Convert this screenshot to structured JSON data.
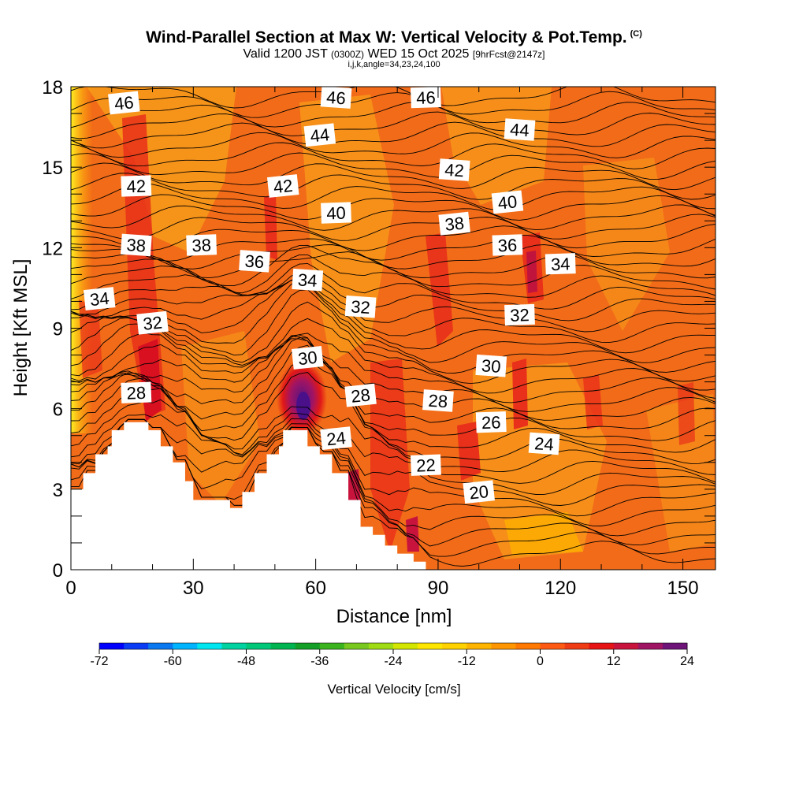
{
  "title": {
    "main": "Wind-Parallel Section at Max W: Vertical Velocity & Pot.Temp.",
    "copyright": "(C)",
    "valid_prefix": "Valid 1200 JST",
    "utc": "(0300Z)",
    "valid_date": "WED 15 Oct 2025",
    "forecast": "[9hrFcst@2147z]",
    "indices": "i,j,k,angle=34,23,24,100"
  },
  "colors": {
    "background_fill": "#f26b18",
    "terrain": "#ffffff",
    "contour": "#000000"
  },
  "chart_data": {
    "type": "contour",
    "xlabel": "Distance [nm]",
    "ylabel": "Height [Kft MSL]",
    "xlim": [
      0,
      158
    ],
    "ylim": [
      0,
      18
    ],
    "x_ticks": [
      0,
      30,
      60,
      90,
      120,
      150
    ],
    "y_ticks": [
      0,
      3,
      6,
      9,
      12,
      15,
      18
    ],
    "terrain_profile": [
      [
        0,
        3.0
      ],
      [
        3,
        3.0
      ],
      [
        3,
        3.6
      ],
      [
        6,
        3.6
      ],
      [
        6,
        4.3
      ],
      [
        9,
        4.3
      ],
      [
        9,
        4.6
      ],
      [
        10,
        4.6
      ],
      [
        10,
        5.2
      ],
      [
        13,
        5.2
      ],
      [
        13,
        5.5
      ],
      [
        19,
        5.5
      ],
      [
        19,
        5.2
      ],
      [
        22,
        5.2
      ],
      [
        22,
        4.6
      ],
      [
        25,
        4.6
      ],
      [
        25,
        4.0
      ],
      [
        28,
        4.0
      ],
      [
        28,
        3.3
      ],
      [
        30,
        3.3
      ],
      [
        30,
        2.6
      ],
      [
        39,
        2.6
      ],
      [
        39,
        2.3
      ],
      [
        42,
        2.3
      ],
      [
        42,
        2.9
      ],
      [
        45,
        2.9
      ],
      [
        45,
        3.6
      ],
      [
        48,
        3.6
      ],
      [
        48,
        4.3
      ],
      [
        51,
        4.3
      ],
      [
        51,
        4.6
      ],
      [
        52,
        4.6
      ],
      [
        52,
        5.2
      ],
      [
        58,
        5.2
      ],
      [
        58,
        4.6
      ],
      [
        61,
        4.6
      ],
      [
        61,
        4.3
      ],
      [
        64,
        4.3
      ],
      [
        64,
        3.6
      ],
      [
        68,
        3.6
      ],
      [
        68,
        2.6
      ],
      [
        71,
        2.6
      ],
      [
        71,
        1.6
      ],
      [
        74,
        1.6
      ],
      [
        74,
        1.3
      ],
      [
        77,
        1.3
      ],
      [
        77,
        0.9
      ],
      [
        80,
        0.9
      ],
      [
        80,
        0.6
      ],
      [
        84,
        0.6
      ],
      [
        84,
        0.3
      ],
      [
        87,
        0.3
      ],
      [
        87,
        0
      ]
    ],
    "isentrope_labels": [
      {
        "value": "46",
        "x": 13,
        "y": 17.4
      },
      {
        "value": "46",
        "x": 65,
        "y": 17.6
      },
      {
        "value": "46",
        "x": 87,
        "y": 17.6
      },
      {
        "value": "44",
        "x": 61,
        "y": 16.2
      },
      {
        "value": "44",
        "x": 110,
        "y": 16.4
      },
      {
        "value": "42",
        "x": 16,
        "y": 14.3
      },
      {
        "value": "42",
        "x": 52,
        "y": 14.3
      },
      {
        "value": "42",
        "x": 94,
        "y": 14.9
      },
      {
        "value": "40",
        "x": 65,
        "y": 13.3
      },
      {
        "value": "40",
        "x": 107,
        "y": 13.7
      },
      {
        "value": "38",
        "x": 16,
        "y": 12.1
      },
      {
        "value": "38",
        "x": 32,
        "y": 12.1
      },
      {
        "value": "38",
        "x": 94,
        "y": 12.9
      },
      {
        "value": "36",
        "x": 45,
        "y": 11.5
      },
      {
        "value": "36",
        "x": 107,
        "y": 12.1
      },
      {
        "value": "34",
        "x": 7,
        "y": 10.1
      },
      {
        "value": "34",
        "x": 58,
        "y": 10.8
      },
      {
        "value": "34",
        "x": 120,
        "y": 11.4
      },
      {
        "value": "32",
        "x": 20,
        "y": 9.2
      },
      {
        "value": "32",
        "x": 71,
        "y": 9.8
      },
      {
        "value": "32",
        "x": 110,
        "y": 9.5
      },
      {
        "value": "30",
        "x": 58,
        "y": 7.9
      },
      {
        "value": "30",
        "x": 103,
        "y": 7.6
      },
      {
        "value": "28",
        "x": 16,
        "y": 6.6
      },
      {
        "value": "28",
        "x": 71,
        "y": 6.5
      },
      {
        "value": "28",
        "x": 90,
        "y": 6.3
      },
      {
        "value": "26",
        "x": 103,
        "y": 5.5
      },
      {
        "value": "24",
        "x": 65,
        "y": 4.9
      },
      {
        "value": "24",
        "x": 116,
        "y": 4.7
      },
      {
        "value": "22",
        "x": 87,
        "y": 3.9
      },
      {
        "value": "20",
        "x": 100,
        "y": 2.9
      }
    ],
    "colorbar": {
      "label": "Vertical Velocity [cm/s]",
      "min": -72,
      "max": 24,
      "step": 4,
      "tick_labels": [
        "-72",
        "-60",
        "-48",
        "-36",
        "-24",
        "-12",
        "0",
        "12",
        "24"
      ],
      "colors": [
        "#0000ff",
        "#0a3cf5",
        "#0a78f0",
        "#00b4ff",
        "#00e6f0",
        "#00d2a0",
        "#00c878",
        "#00b450",
        "#14a028",
        "#3cb41e",
        "#78c81e",
        "#a0dc14",
        "#d2e600",
        "#ffe600",
        "#ffd200",
        "#ffb400",
        "#ff9600",
        "#ff7800",
        "#ff5a14",
        "#f03c14",
        "#e61414",
        "#c8143c",
        "#a01464",
        "#6e1478"
      ]
    }
  }
}
